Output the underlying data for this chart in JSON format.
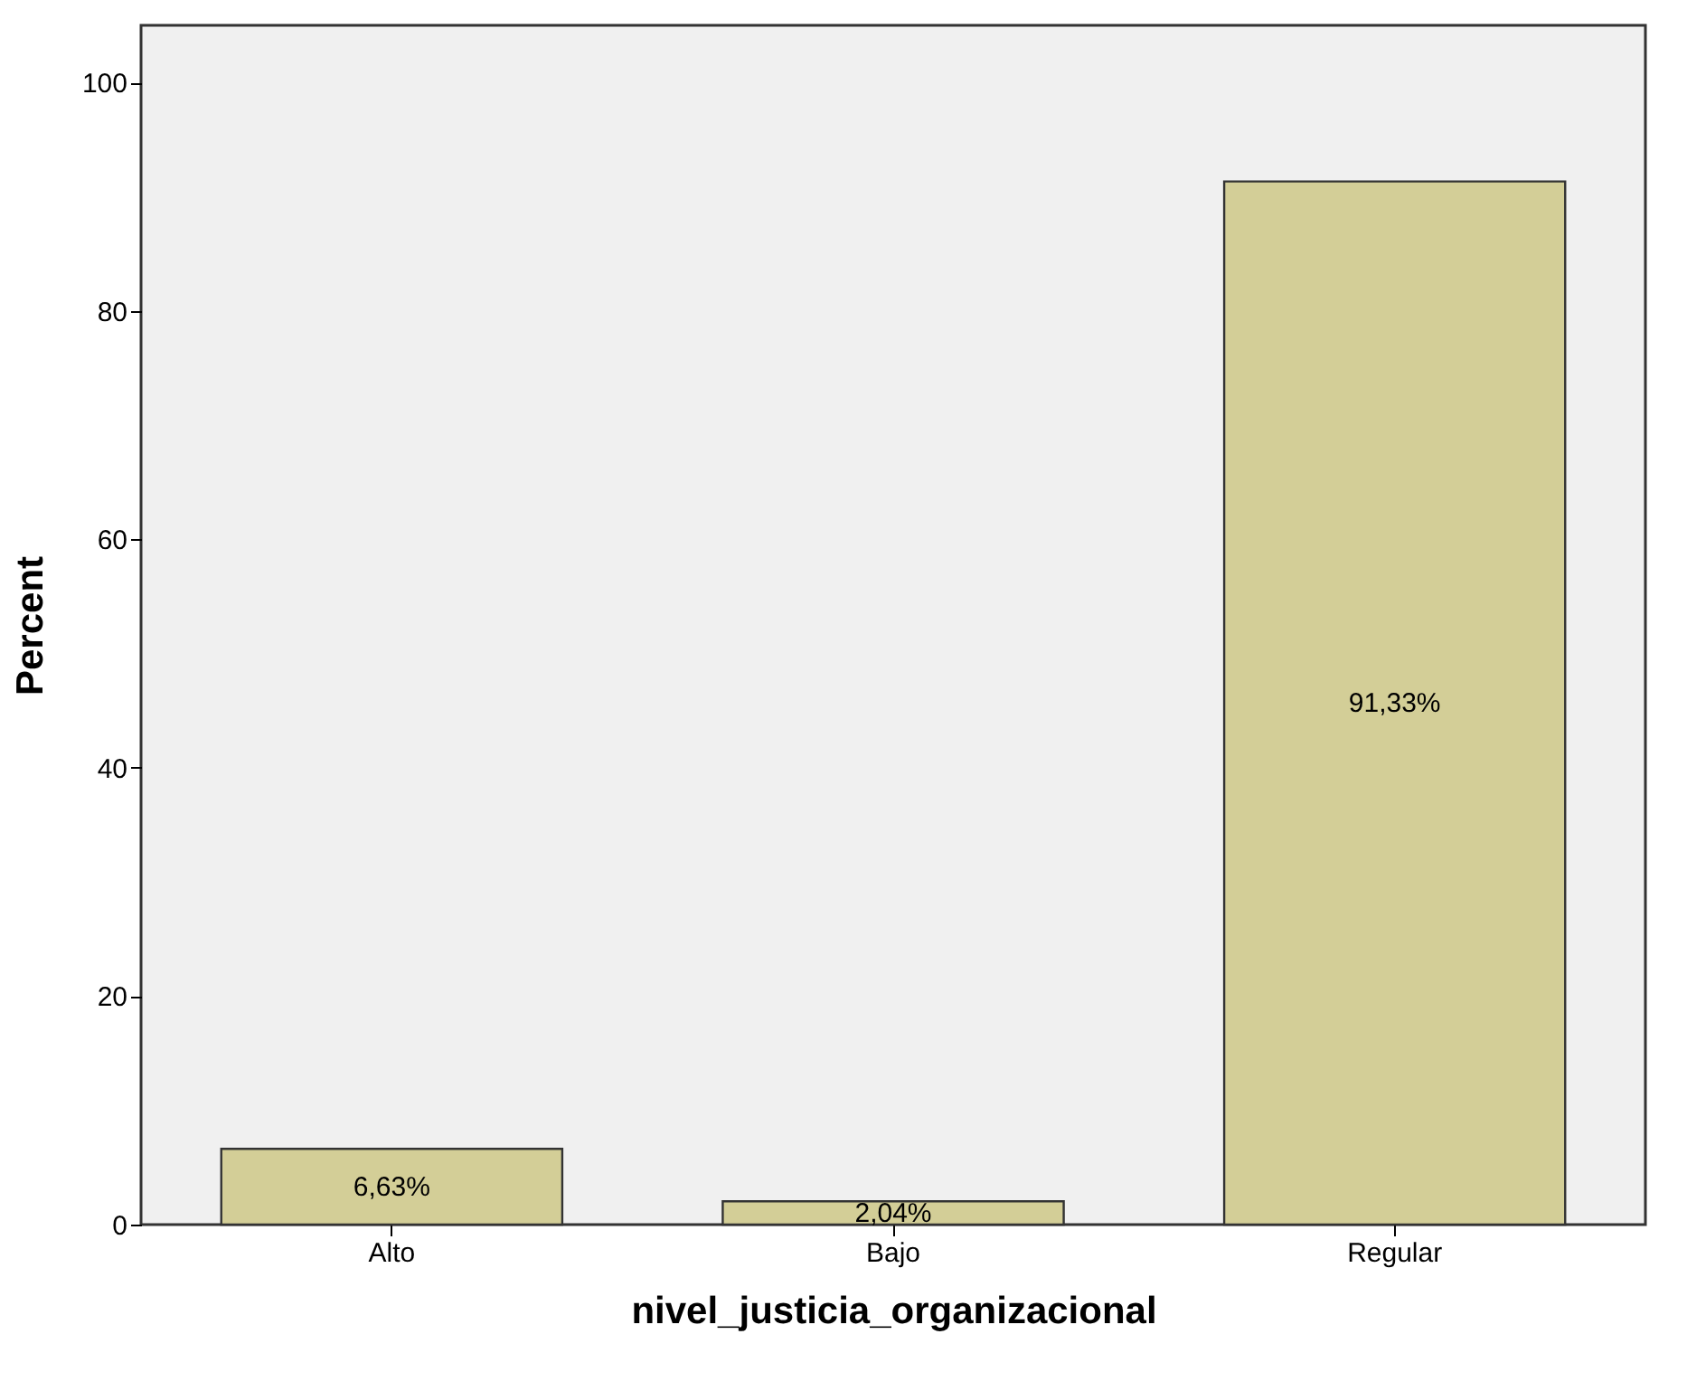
{
  "chart_data": {
    "type": "bar",
    "xlabel": "nivel_justicia_organizacional",
    "ylabel": "Percent",
    "categories": [
      "Alto",
      "Bajo",
      "Regular"
    ],
    "values": [
      6.63,
      2.04,
      91.33
    ],
    "value_labels": [
      "6,63%",
      "2,04%",
      "91,33%"
    ],
    "color": "#d3ce97",
    "ylim": [
      0,
      105
    ],
    "yticks": [
      0,
      20,
      40,
      60,
      80,
      100
    ],
    "grid": false
  }
}
